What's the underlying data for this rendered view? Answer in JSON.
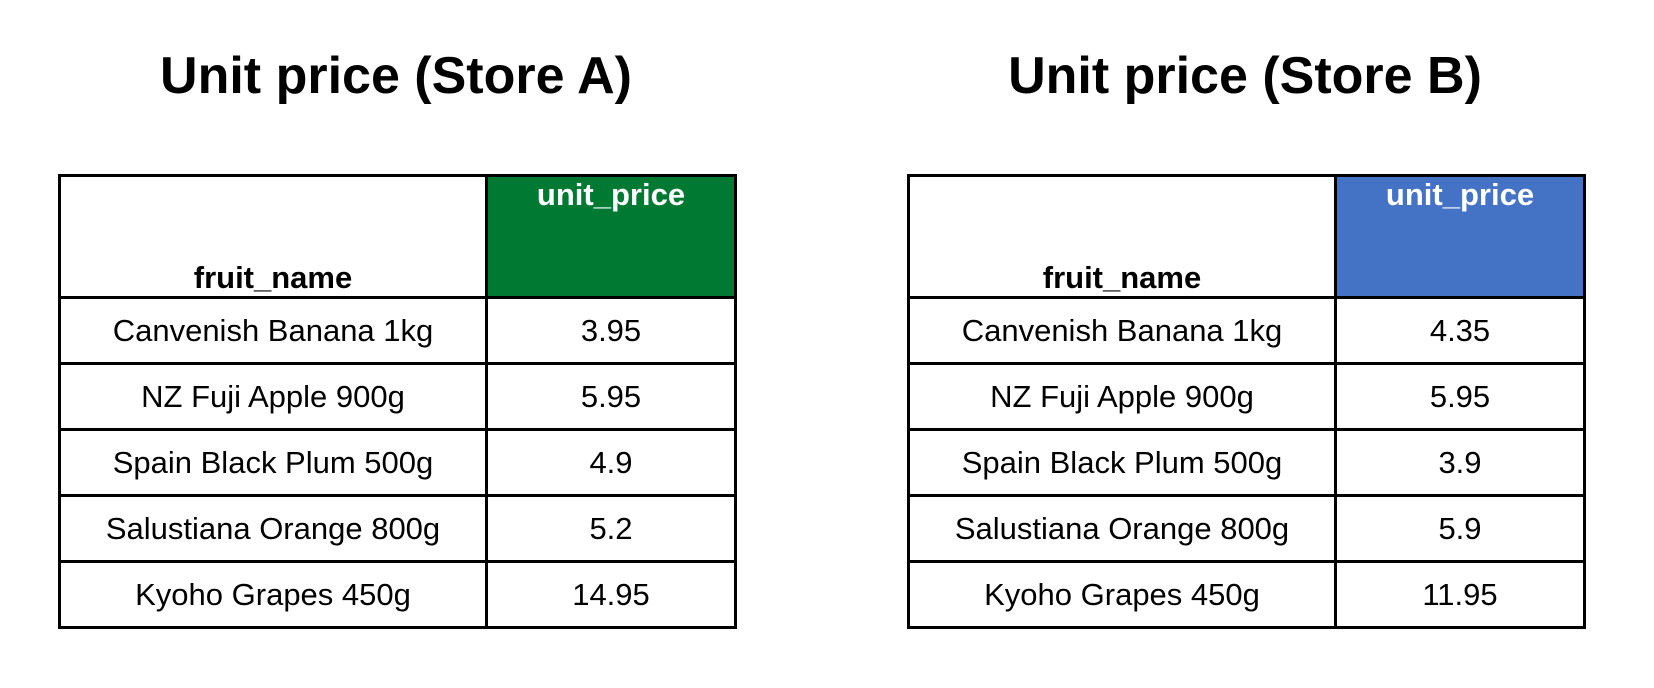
{
  "store_a": {
    "title": "Unit price (Store A)",
    "header_color": "#007A33",
    "columns": [
      "fruit_name",
      "unit_price"
    ],
    "rows": [
      {
        "fruit_name": "Canvenish Banana 1kg",
        "unit_price": "3.95"
      },
      {
        "fruit_name": "NZ Fuji Apple 900g",
        "unit_price": "5.95"
      },
      {
        "fruit_name": "Spain Black Plum 500g",
        "unit_price": "4.9"
      },
      {
        "fruit_name": "Salustiana Orange 800g",
        "unit_price": "5.2"
      },
      {
        "fruit_name": "Kyoho Grapes 450g",
        "unit_price": "14.95"
      }
    ]
  },
  "store_b": {
    "title": "Unit price (Store B)",
    "header_color": "#4472C4",
    "columns": [
      "fruit_name",
      "unit_price"
    ],
    "rows": [
      {
        "fruit_name": "Canvenish Banana 1kg",
        "unit_price": "4.35"
      },
      {
        "fruit_name": "NZ Fuji Apple 900g",
        "unit_price": "5.95"
      },
      {
        "fruit_name": "Spain Black Plum 500g",
        "unit_price": "3.9"
      },
      {
        "fruit_name": "Salustiana Orange 800g",
        "unit_price": "5.9"
      },
      {
        "fruit_name": "Kyoho Grapes 450g",
        "unit_price": "11.95"
      }
    ]
  }
}
